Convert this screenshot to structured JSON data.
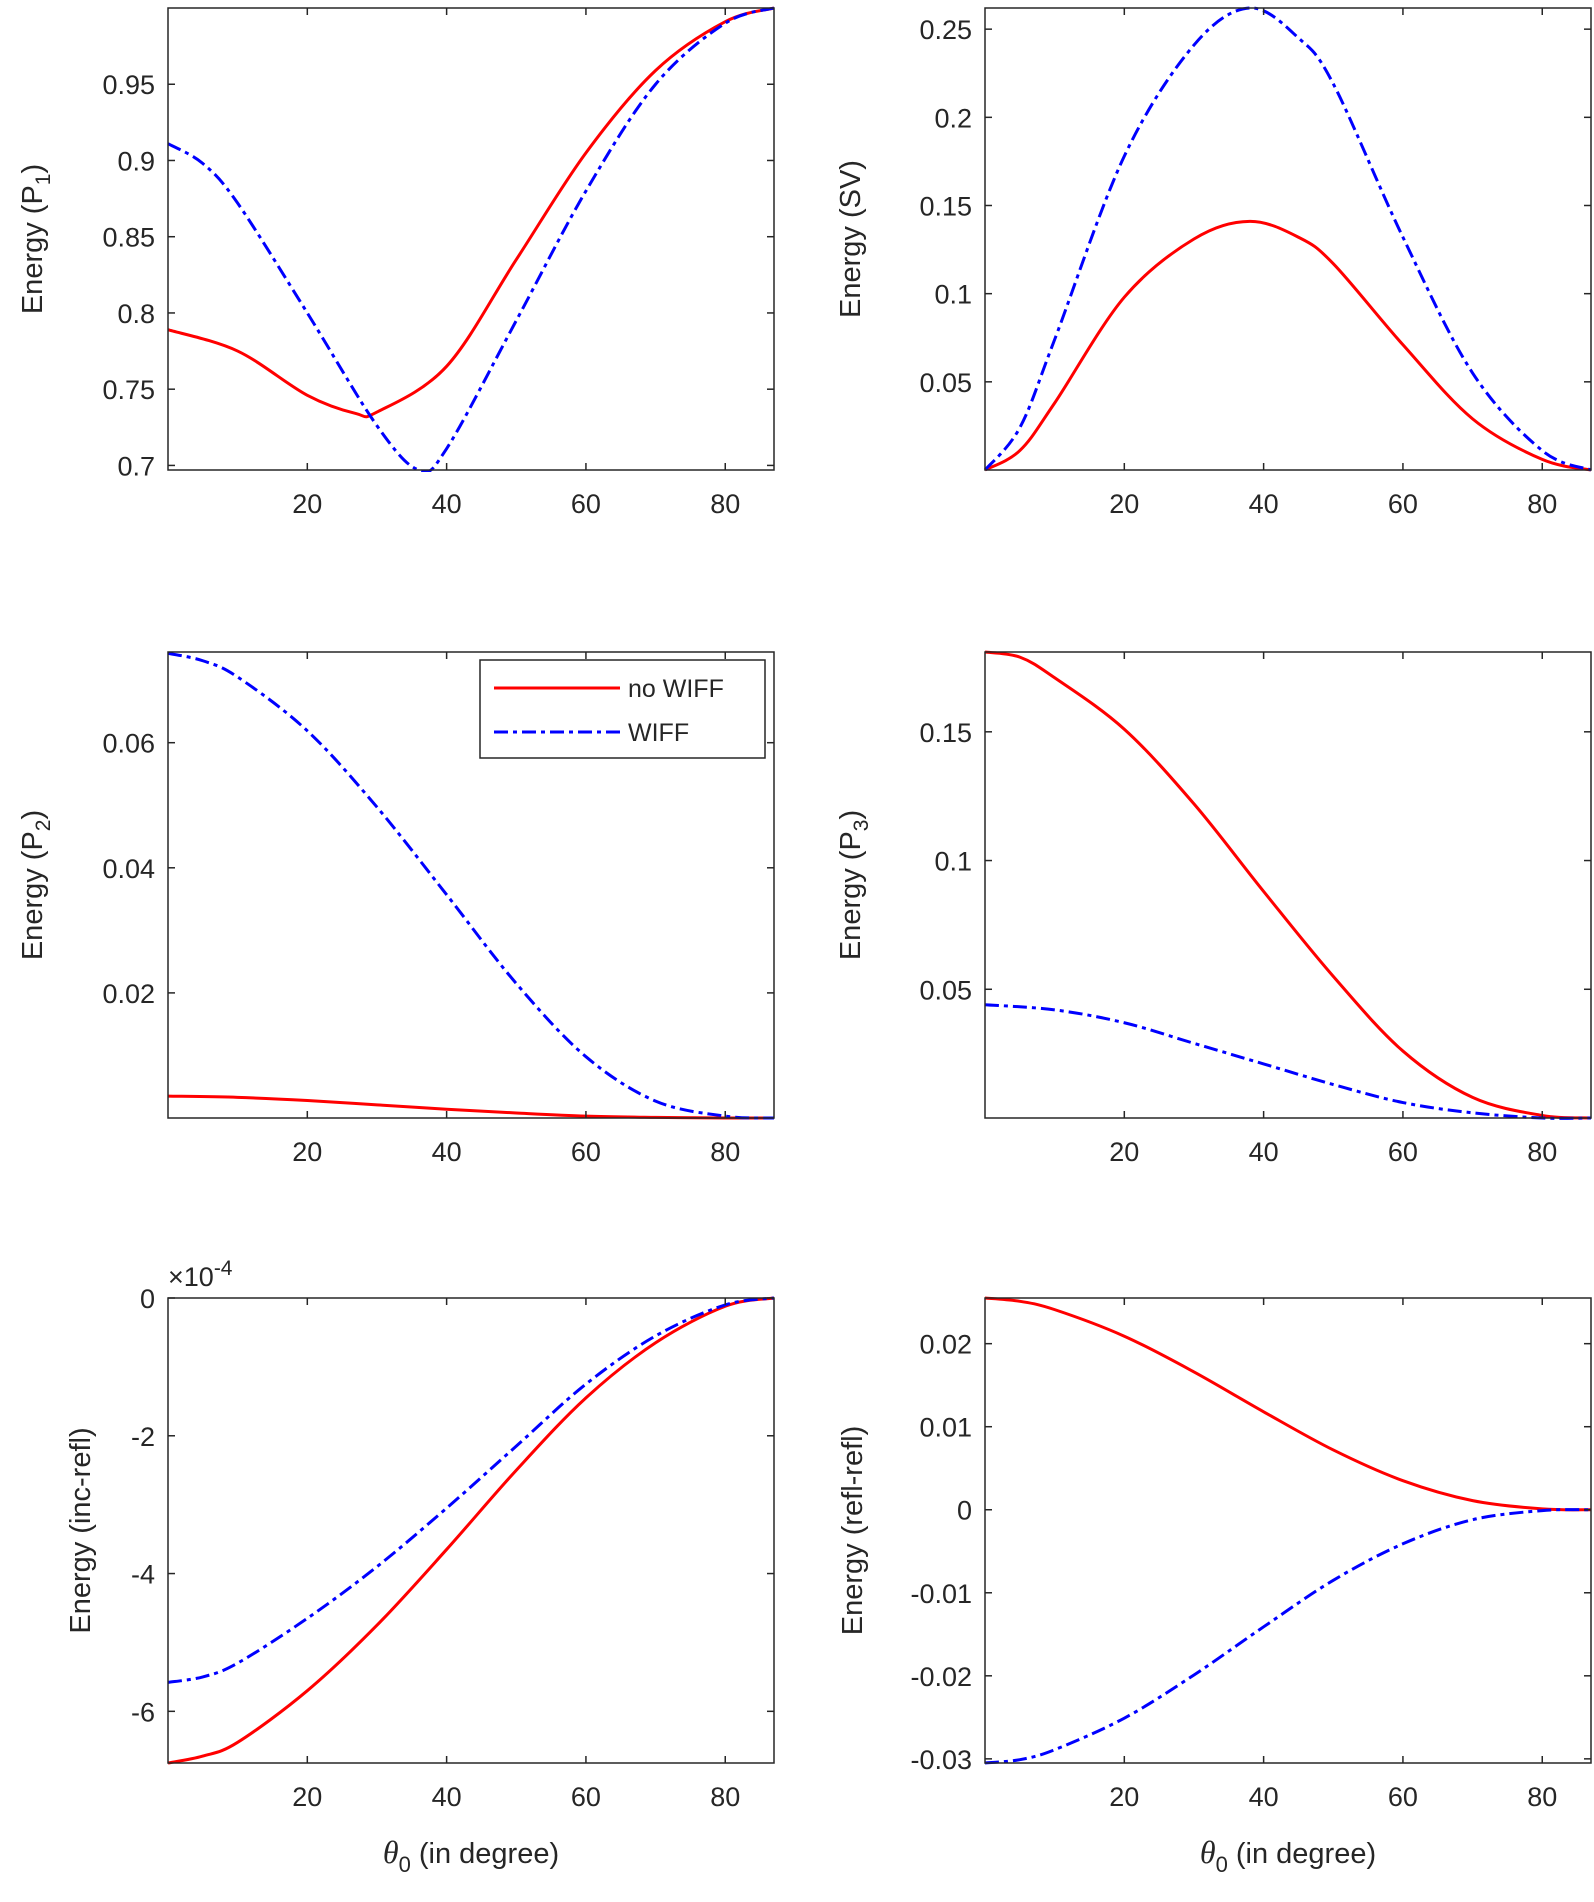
{
  "colors": {
    "no_wiff": "#ff0000",
    "wiff": "#0000ff",
    "axes": "#262626"
  },
  "legend": [
    {
      "label": "no WIFF",
      "style": "solid"
    },
    {
      "label": "WIFF",
      "style": "dashdot"
    }
  ],
  "chart_data": [
    {
      "type": "line",
      "id": "p1",
      "ylabel": "Energy (P1)",
      "ylabel_main": "Energy (P",
      "ylabel_sub": "1",
      "ylabel_end": ")",
      "xlabel": "",
      "xlim": [
        0,
        87
      ],
      "ylim": [
        0.697,
        1.0
      ],
      "xticks": [
        20,
        40,
        60,
        80
      ],
      "xtick_labels": [
        "20",
        "40",
        "60",
        "80"
      ],
      "yticks": [
        0.7,
        0.75,
        0.8,
        0.85,
        0.9,
        0.95
      ],
      "ytick_labels": [
        "0.7",
        "0.75",
        "0.8",
        "0.85",
        "0.9",
        "0.95"
      ],
      "series": [
        {
          "name": "no WIFF",
          "x": [
            0,
            10,
            20,
            27,
            30,
            40,
            50,
            60,
            70,
            80,
            87
          ],
          "y": [
            0.789,
            0.775,
            0.746,
            0.734,
            0.735,
            0.765,
            0.835,
            0.905,
            0.959,
            0.991,
            1.0
          ]
        },
        {
          "name": "WIFF",
          "x": [
            0,
            5,
            10,
            20,
            30,
            36,
            40,
            50,
            60,
            70,
            80,
            87
          ],
          "y": [
            0.911,
            0.898,
            0.872,
            0.8,
            0.726,
            0.697,
            0.711,
            0.795,
            0.88,
            0.95,
            0.99,
            1.0
          ]
        }
      ]
    },
    {
      "type": "line",
      "id": "sv",
      "ylabel": "Energy (SV)",
      "ylabel_main": "Energy (SV)",
      "ylabel_sub": "",
      "ylabel_end": "",
      "xlabel": "",
      "xlim": [
        0,
        87
      ],
      "ylim": [
        0,
        0.262
      ],
      "xticks": [
        20,
        40,
        60,
        80
      ],
      "xtick_labels": [
        "20",
        "40",
        "60",
        "80"
      ],
      "yticks": [
        0.05,
        0.1,
        0.15,
        0.2,
        0.25
      ],
      "ytick_labels": [
        "0.05",
        "0.1",
        "0.15",
        "0.2",
        "0.25"
      ],
      "series": [
        {
          "name": "no WIFF",
          "x": [
            0,
            5,
            10,
            20,
            30,
            38,
            45,
            50,
            60,
            70,
            80,
            87
          ],
          "y": [
            0,
            0.011,
            0.038,
            0.098,
            0.131,
            0.141,
            0.132,
            0.117,
            0.071,
            0.029,
            0.006,
            0
          ]
        },
        {
          "name": "WIFF",
          "x": [
            0,
            5,
            10,
            20,
            30,
            38,
            45,
            50,
            60,
            70,
            80,
            87
          ],
          "y": [
            0,
            0.024,
            0.074,
            0.178,
            0.241,
            0.262,
            0.245,
            0.219,
            0.132,
            0.055,
            0.011,
            0
          ]
        }
      ]
    },
    {
      "type": "line",
      "id": "p2",
      "ylabel": "Energy (P2)",
      "ylabel_main": "Energy (P",
      "ylabel_sub": "2",
      "ylabel_end": ")",
      "xlabel": "",
      "xlim": [
        0,
        87
      ],
      "ylim": [
        0,
        0.0745
      ],
      "xticks": [
        20,
        40,
        60,
        80
      ],
      "xtick_labels": [
        "20",
        "40",
        "60",
        "80"
      ],
      "yticks": [
        0.02,
        0.04,
        0.06
      ],
      "ytick_labels": [
        "0.02",
        "0.04",
        "0.06"
      ],
      "series": [
        {
          "name": "no WIFF",
          "x": [
            0,
            10,
            20,
            30,
            40,
            50,
            60,
            70,
            80,
            87
          ],
          "y": [
            0.0035,
            0.0033,
            0.0028,
            0.0021,
            0.0014,
            0.0008,
            0.0003,
            0.0001,
            0,
            0
          ]
        },
        {
          "name": "WIFF",
          "x": [
            0,
            5,
            10,
            20,
            30,
            40,
            50,
            60,
            70,
            80,
            87
          ],
          "y": [
            0.0743,
            0.0731,
            0.0705,
            0.0619,
            0.0497,
            0.0357,
            0.0215,
            0.0098,
            0.0027,
            0.0003,
            0
          ]
        }
      ],
      "legend": "top-right"
    },
    {
      "type": "line",
      "id": "p3",
      "ylabel": "Energy (P3)",
      "ylabel_main": "Energy (P",
      "ylabel_sub": "3",
      "ylabel_end": ")",
      "xlabel": "",
      "xlim": [
        0,
        87
      ],
      "ylim": [
        0,
        0.181
      ],
      "xticks": [
        20,
        40,
        60,
        80
      ],
      "xtick_labels": [
        "20",
        "40",
        "60",
        "80"
      ],
      "yticks": [
        0.05,
        0.1,
        0.15
      ],
      "ytick_labels": [
        "0.05",
        "0.1",
        "0.15"
      ],
      "series": [
        {
          "name": "no WIFF",
          "x": [
            0,
            5,
            10,
            20,
            30,
            40,
            50,
            60,
            70,
            80,
            87
          ],
          "y": [
            0.181,
            0.179,
            0.171,
            0.151,
            0.122,
            0.088,
            0.055,
            0.026,
            0.008,
            0.001,
            0
          ]
        },
        {
          "name": "WIFF",
          "x": [
            0,
            10,
            20,
            30,
            40,
            50,
            60,
            70,
            80,
            87
          ],
          "y": [
            0.044,
            0.042,
            0.037,
            0.029,
            0.021,
            0.013,
            0.006,
            0.002,
            0,
            0
          ]
        }
      ]
    },
    {
      "type": "line",
      "id": "inc-refl",
      "ylabel": "Energy (inc-refl)",
      "ylabel_main": "Energy (inc-refl)",
      "ylabel_sub": "",
      "ylabel_end": "",
      "xlabel": "θ0 (in degree)",
      "xlabel_theta": "θ",
      "xlabel_sub": "0",
      "xlabel_rest": " (in degree)",
      "exponent_label": "×10",
      "exponent_power": "-4",
      "xlim": [
        0,
        87
      ],
      "ylim": [
        -6.75,
        0
      ],
      "xticks": [
        20,
        40,
        60,
        80
      ],
      "xtick_labels": [
        "20",
        "40",
        "60",
        "80"
      ],
      "yticks": [
        -6,
        -4,
        -2,
        0
      ],
      "ytick_labels": [
        "-6",
        "-4",
        "-2",
        "0"
      ],
      "series": [
        {
          "name": "no WIFF",
          "x": [
            0,
            5,
            10,
            20,
            30,
            40,
            50,
            60,
            70,
            80,
            87
          ],
          "y": [
            -6.75,
            -6.65,
            -6.45,
            -5.7,
            -4.75,
            -3.65,
            -2.5,
            -1.45,
            -0.65,
            -0.12,
            0
          ]
        },
        {
          "name": "WIFF",
          "x": [
            0,
            5,
            10,
            20,
            30,
            40,
            50,
            60,
            70,
            80,
            87
          ],
          "y": [
            -5.58,
            -5.5,
            -5.3,
            -4.65,
            -3.9,
            -3.05,
            -2.15,
            -1.25,
            -0.55,
            -0.1,
            0
          ]
        }
      ]
    },
    {
      "type": "line",
      "id": "refl-refl",
      "ylabel": "Energy (refl-refl)",
      "ylabel_main": "Energy (refl-refl)",
      "ylabel_sub": "",
      "ylabel_end": "",
      "xlabel": "θ0 (in degree)",
      "xlabel_theta": "θ",
      "xlabel_sub": "0",
      "xlabel_rest": " (in degree)",
      "xlim": [
        0,
        87
      ],
      "ylim": [
        -0.0305,
        0.0255
      ],
      "xticks": [
        20,
        40,
        60,
        80
      ],
      "xtick_labels": [
        "20",
        "40",
        "60",
        "80"
      ],
      "yticks": [
        -0.03,
        -0.02,
        -0.01,
        0,
        0.01,
        0.02
      ],
      "ytick_labels": [
        "-0.03",
        "-0.02",
        "-0.01",
        "0",
        "0.01",
        "0.02"
      ],
      "series": [
        {
          "name": "no WIFF",
          "x": [
            0,
            5,
            10,
            20,
            30,
            40,
            50,
            60,
            70,
            80,
            87
          ],
          "y": [
            0.0255,
            0.0251,
            0.0241,
            0.0209,
            0.0166,
            0.0118,
            0.0072,
            0.0035,
            0.0011,
            0.0001,
            0
          ]
        },
        {
          "name": "WIFF",
          "x": [
            0,
            5,
            10,
            20,
            30,
            40,
            50,
            60,
            70,
            80,
            87
          ],
          "y": [
            -0.0305,
            -0.0301,
            -0.0289,
            -0.0251,
            -0.0199,
            -0.0141,
            -0.0085,
            -0.0041,
            -0.0012,
            -0.0001,
            0
          ]
        }
      ]
    }
  ]
}
